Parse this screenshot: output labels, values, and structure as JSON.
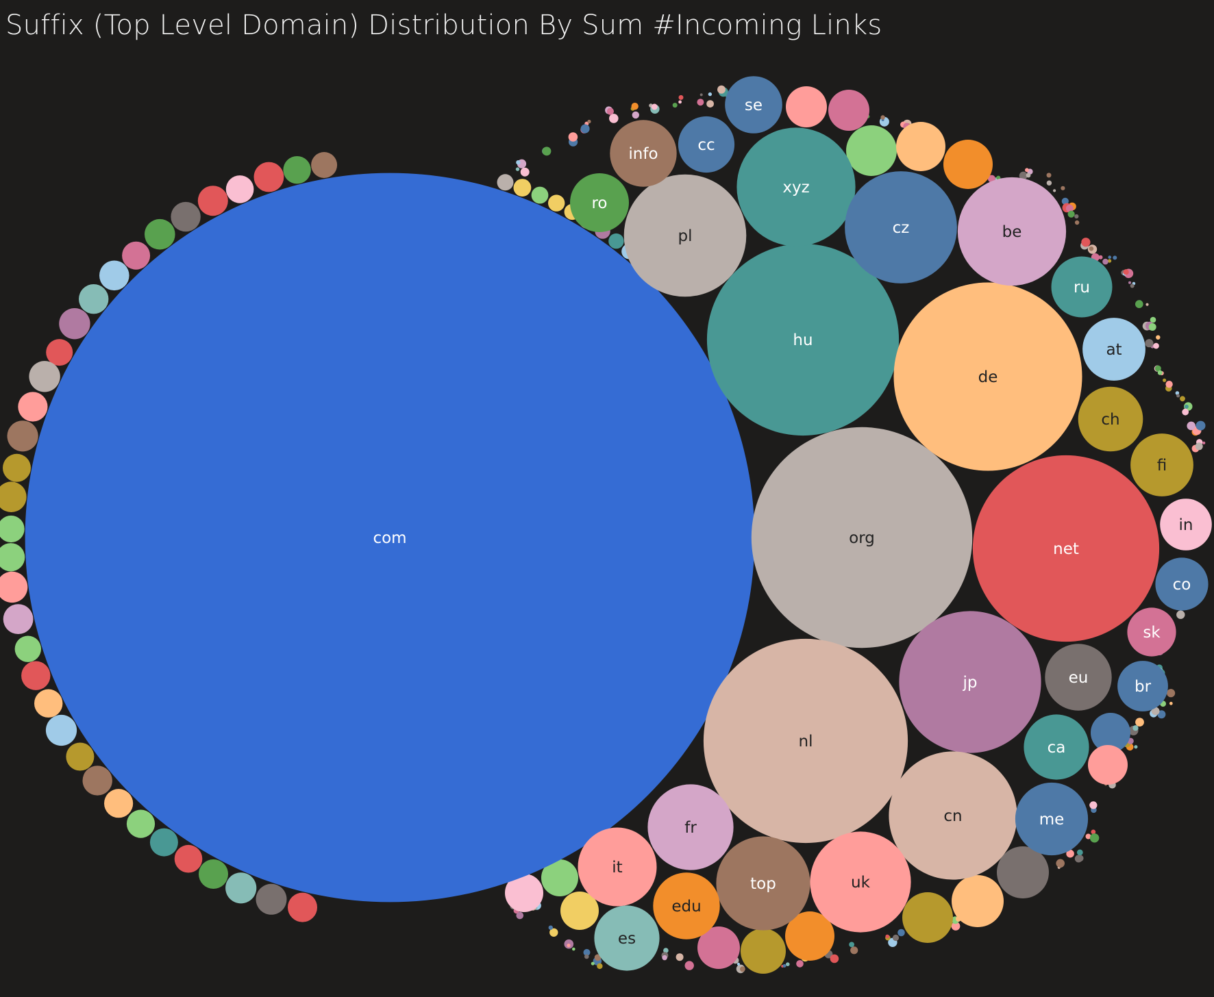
{
  "chart_data": {
    "type": "packed-bubble",
    "title": "Suffix (Top Level Domain) Distribution By Sum #Incoming Links",
    "measure": "Sum #Incoming Links",
    "labeled": [
      {
        "label": "com",
        "color": "#356cd4",
        "text_color": "#ffffff",
        "value": 874000
      },
      {
        "label": "org",
        "color": "#bab0ab",
        "text_color": "#222222",
        "value": 80100
      },
      {
        "label": "nl",
        "color": "#d7b5a6",
        "text_color": "#222222",
        "value": 68500
      },
      {
        "label": "hu",
        "color": "#499894",
        "text_color": "#ffffff",
        "value": 60500
      },
      {
        "label": "de",
        "color": "#ffbe7d",
        "text_color": "#222222",
        "value": 58300
      },
      {
        "label": "net",
        "color": "#e15759",
        "text_color": "#ffffff",
        "value": 57100
      },
      {
        "label": "jp",
        "color": "#b07aa1",
        "text_color": "#ffffff",
        "value": 33100
      },
      {
        "label": "cn",
        "color": "#d7b5a6",
        "text_color": "#222222",
        "value": 27000
      },
      {
        "label": "pl",
        "color": "#bab0ab",
        "text_color": "#222222",
        "value": 24600
      },
      {
        "label": "xyz",
        "color": "#499894",
        "text_color": "#ffffff",
        "value": 23100
      },
      {
        "label": "cz",
        "color": "#4e79a7",
        "text_color": "#ffffff",
        "value": 20700
      },
      {
        "label": "be",
        "color": "#d4a6c8",
        "text_color": "#222222",
        "value": 19300
      },
      {
        "label": "uk",
        "color": "#ff9d9a",
        "text_color": "#222222",
        "value": 16700
      },
      {
        "label": "top",
        "color": "#9d7660",
        "text_color": "#ffffff",
        "value": 14500
      },
      {
        "label": "fr",
        "color": "#d4a6c8",
        "text_color": "#222222",
        "value": 12100
      },
      {
        "label": "it",
        "color": "#ff9d9a",
        "text_color": "#222222",
        "value": 10200
      },
      {
        "label": "me",
        "color": "#4e79a7",
        "text_color": "#ffffff",
        "value": 8700
      },
      {
        "label": "info",
        "color": "#9d7660",
        "text_color": "#ffffff",
        "value": 7300
      },
      {
        "label": "edu",
        "color": "#f28e2b",
        "text_color": "#222222",
        "value": 7300
      },
      {
        "label": "eu",
        "color": "#79706e",
        "text_color": "#ffffff",
        "value": 7300
      },
      {
        "label": "ca",
        "color": "#499894",
        "text_color": "#ffffff",
        "value": 7000
      },
      {
        "label": "es",
        "color": "#86bcb6",
        "text_color": "#222222",
        "value": 7000
      },
      {
        "label": "ch",
        "color": "#b6992d",
        "text_color": "#222222",
        "value": 6900
      },
      {
        "label": "fi",
        "color": "#b6992d",
        "text_color": "#222222",
        "value": 6500
      },
      {
        "label": "at",
        "color": "#a0cbe8",
        "text_color": "#222222",
        "value": 6500
      },
      {
        "label": "ru",
        "color": "#499894",
        "text_color": "#ffffff",
        "value": 6100
      },
      {
        "label": "se",
        "color": "#4e79a7",
        "text_color": "#ffffff",
        "value": 5400
      },
      {
        "label": "cc",
        "color": "#4e79a7",
        "text_color": "#ffffff",
        "value": 5200
      },
      {
        "label": "co",
        "color": "#4e79a7",
        "text_color": "#ffffff",
        "value": 4600
      },
      {
        "label": "in",
        "color": "#fabfd2",
        "text_color": "#222222",
        "value": 4400
      },
      {
        "label": "ro",
        "color": "#59a14f",
        "text_color": "#ffffff",
        "value": 5700
      },
      {
        "label": "br",
        "color": "#4e79a7",
        "text_color": "#ffffff",
        "value": 4200
      },
      {
        "label": "sk",
        "color": "#d37295",
        "text_color": "#ffffff",
        "value": 3900
      }
    ],
    "palette": [
      "#356cd4",
      "#4e79a7",
      "#a0cbe8",
      "#f28e2b",
      "#ffbe7d",
      "#59a14f",
      "#8cd17d",
      "#b6992d",
      "#f1ce63",
      "#499894",
      "#86bcb6",
      "#e15759",
      "#ff9d9a",
      "#79706e",
      "#bab0ab",
      "#d37295",
      "#fabfd2",
      "#b07aa1",
      "#d4a6c8",
      "#9d7660",
      "#d7b5a6"
    ],
    "unlabeled_approx_count": 420
  }
}
